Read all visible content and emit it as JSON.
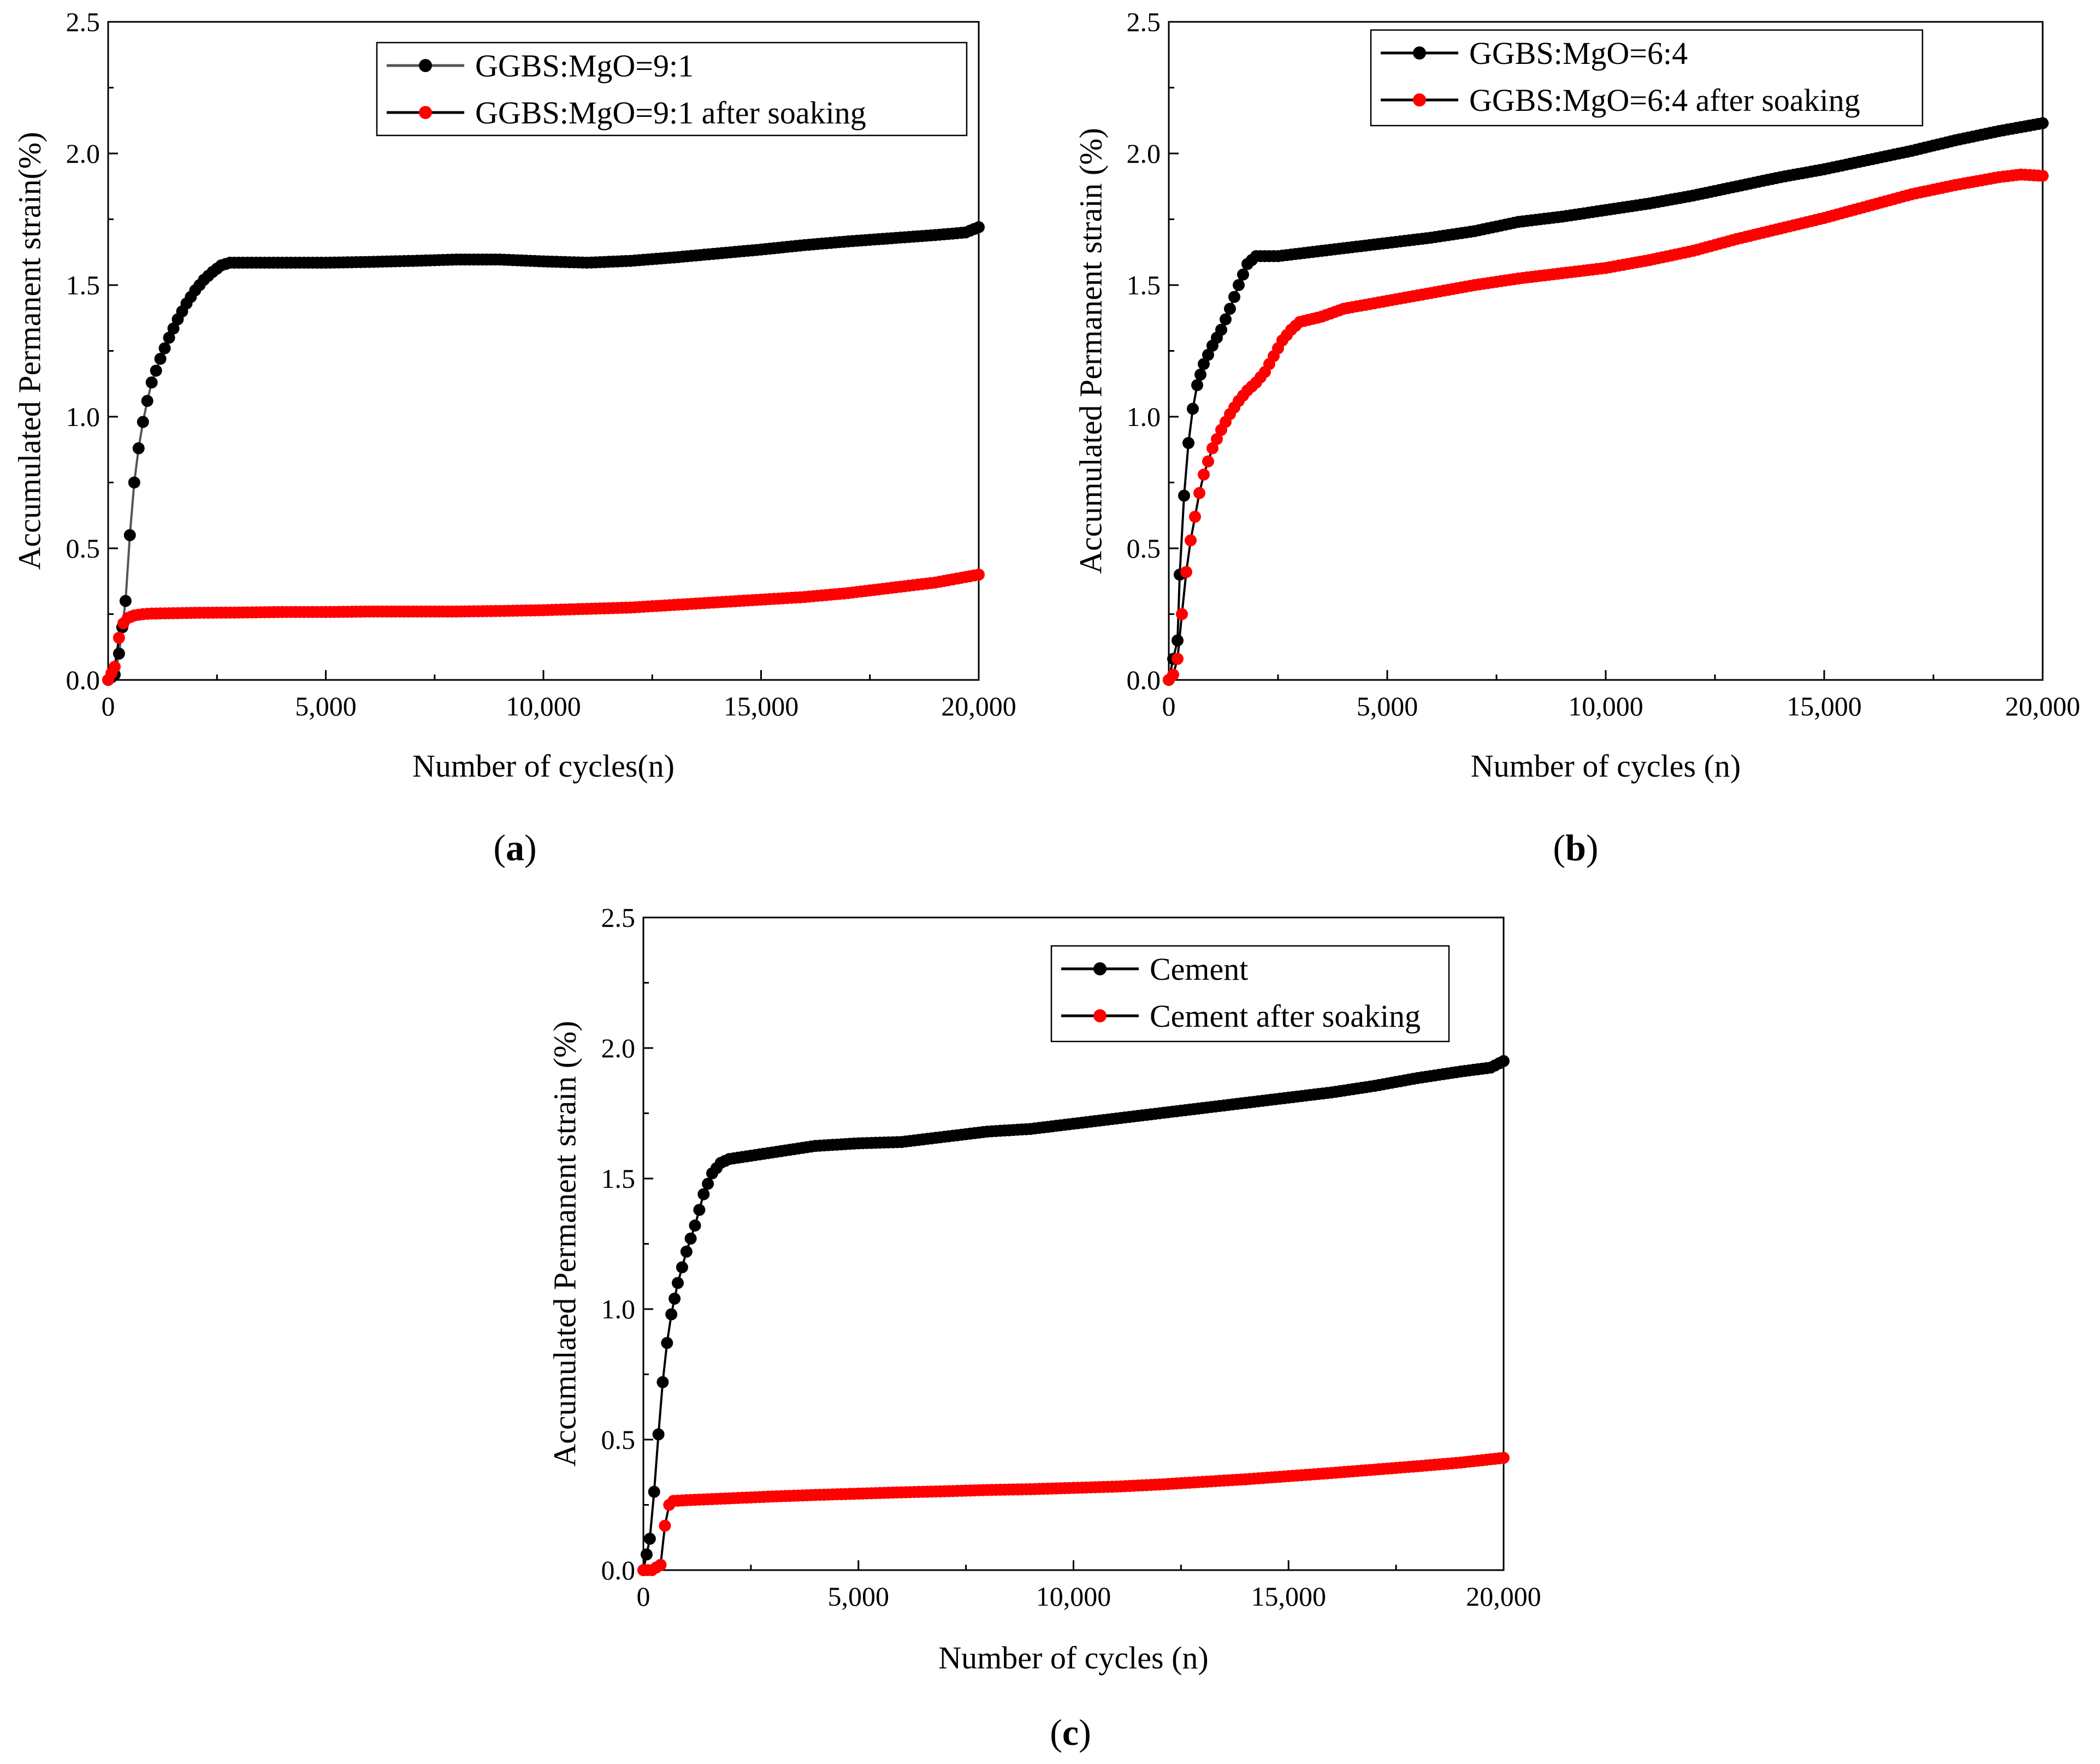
{
  "figure": {
    "panel_labels": [
      {
        "open": "(",
        "letter": "a",
        "close": ")"
      },
      {
        "open": "(",
        "letter": "b",
        "close": ")"
      },
      {
        "open": "(",
        "letter": "c",
        "close": ")"
      }
    ]
  },
  "chart_data": [
    {
      "type": "line",
      "title": "",
      "xlabel": "Number of cycles(n)",
      "ylabel": "Accumulated Permanent strain(%)",
      "xlim": [
        0,
        20000
      ],
      "ylim": [
        0,
        2.5
      ],
      "xticks": [
        0,
        5000,
        10000,
        15000,
        20000
      ],
      "xtick_labels": [
        "0",
        "5,000",
        "10,000",
        "15,000",
        "20,000"
      ],
      "yticks": [
        0,
        0.5,
        1.0,
        1.5,
        2.0,
        2.5
      ],
      "ytick_labels": [
        "0.0",
        "0.5",
        "1.0",
        "1.5",
        "2.0",
        "2.5"
      ],
      "legend_position": "top-right",
      "series": [
        {
          "name": "GGBS:MgO=9:1",
          "color": "#000000",
          "line_color": "#555555",
          "points": [
            [
              0,
              0
            ],
            [
              150,
              0.02
            ],
            [
              250,
              0.1
            ],
            [
              400,
              0.3
            ],
            [
              500,
              0.55
            ],
            [
              600,
              0.75
            ],
            [
              700,
              0.88
            ],
            [
              800,
              0.98
            ],
            [
              900,
              1.06
            ],
            [
              1000,
              1.13
            ],
            [
              1200,
              1.22
            ],
            [
              1400,
              1.3
            ],
            [
              1600,
              1.37
            ],
            [
              1800,
              1.43
            ],
            [
              2000,
              1.48
            ],
            [
              2200,
              1.52
            ],
            [
              2400,
              1.55
            ],
            [
              2600,
              1.575
            ],
            [
              2800,
              1.585
            ],
            [
              3000,
              1.585
            ],
            [
              4000,
              1.585
            ],
            [
              5000,
              1.585
            ],
            [
              6000,
              1.588
            ],
            [
              7000,
              1.592
            ],
            [
              8000,
              1.597
            ],
            [
              9000,
              1.597
            ],
            [
              10000,
              1.59
            ],
            [
              11000,
              1.585
            ],
            [
              12000,
              1.592
            ],
            [
              13000,
              1.605
            ],
            [
              14000,
              1.62
            ],
            [
              15000,
              1.635
            ],
            [
              16000,
              1.652
            ],
            [
              17000,
              1.666
            ],
            [
              18000,
              1.678
            ],
            [
              19000,
              1.69
            ],
            [
              19700,
              1.7
            ],
            [
              20000,
              1.72
            ]
          ]
        },
        {
          "name": "GGBS:MgO=9:1 after soaking",
          "color": "#ff0000",
          "line_color": "#000000",
          "points": [
            [
              0,
              0
            ],
            [
              150,
              0.05
            ],
            [
              250,
              0.16
            ],
            [
              350,
              0.215
            ],
            [
              450,
              0.235
            ],
            [
              600,
              0.245
            ],
            [
              800,
              0.25
            ],
            [
              1000,
              0.252
            ],
            [
              2000,
              0.255
            ],
            [
              3000,
              0.256
            ],
            [
              4000,
              0.258
            ],
            [
              5000,
              0.258
            ],
            [
              6000,
              0.26
            ],
            [
              7000,
              0.26
            ],
            [
              8000,
              0.26
            ],
            [
              9000,
              0.262
            ],
            [
              10000,
              0.265
            ],
            [
              11000,
              0.27
            ],
            [
              12000,
              0.275
            ],
            [
              13000,
              0.285
            ],
            [
              14000,
              0.295
            ],
            [
              15000,
              0.305
            ],
            [
              16000,
              0.315
            ],
            [
              17000,
              0.33
            ],
            [
              18000,
              0.35
            ],
            [
              19000,
              0.37
            ],
            [
              19500,
              0.385
            ],
            [
              20000,
              0.4
            ]
          ]
        }
      ]
    },
    {
      "type": "line",
      "title": "",
      "xlabel": "Number of cycles (n)",
      "ylabel": "Accumulated Permanent strain (%)",
      "xlim": [
        0,
        20000
      ],
      "ylim": [
        0,
        2.5
      ],
      "xticks": [
        0,
        5000,
        10000,
        15000,
        20000
      ],
      "xtick_labels": [
        "0",
        "5,000",
        "10,000",
        "15,000",
        "20,000"
      ],
      "yticks": [
        0,
        0.5,
        1.0,
        1.5,
        2.0,
        2.5
      ],
      "ytick_labels": [
        "0.0",
        "0.5",
        "1.0",
        "1.5",
        "2.0",
        "2.5"
      ],
      "legend_position": "top-right",
      "series": [
        {
          "name": "GGBS:MgO=6:4",
          "color": "#000000",
          "line_color": "#000000",
          "points": [
            [
              0,
              0
            ],
            [
              100,
              0.08
            ],
            [
              200,
              0.15
            ],
            [
              250,
              0.4
            ],
            [
              350,
              0.7
            ],
            [
              450,
              0.9
            ],
            [
              550,
              1.03
            ],
            [
              650,
              1.12
            ],
            [
              800,
              1.2
            ],
            [
              1000,
              1.27
            ],
            [
              1200,
              1.33
            ],
            [
              1400,
              1.41
            ],
            [
              1600,
              1.5
            ],
            [
              1800,
              1.58
            ],
            [
              2000,
              1.61
            ],
            [
              2500,
              1.61
            ],
            [
              3000,
              1.62
            ],
            [
              4000,
              1.64
            ],
            [
              5000,
              1.66
            ],
            [
              6000,
              1.68
            ],
            [
              7000,
              1.705
            ],
            [
              8000,
              1.74
            ],
            [
              9000,
              1.76
            ],
            [
              10000,
              1.785
            ],
            [
              11000,
              1.81
            ],
            [
              12000,
              1.84
            ],
            [
              13000,
              1.875
            ],
            [
              14000,
              1.91
            ],
            [
              15000,
              1.94
            ],
            [
              16000,
              1.975
            ],
            [
              17000,
              2.01
            ],
            [
              18000,
              2.05
            ],
            [
              19000,
              2.085
            ],
            [
              20000,
              2.115
            ]
          ]
        },
        {
          "name": "GGBS:MgO=6:4 after soaking",
          "color": "#ff0000",
          "line_color": "#000000",
          "points": [
            [
              0,
              0
            ],
            [
              100,
              0.02
            ],
            [
              200,
              0.08
            ],
            [
              300,
              0.25
            ],
            [
              400,
              0.41
            ],
            [
              500,
              0.53
            ],
            [
              600,
              0.62
            ],
            [
              700,
              0.71
            ],
            [
              800,
              0.78
            ],
            [
              1000,
              0.88
            ],
            [
              1200,
              0.95
            ],
            [
              1400,
              1.01
            ],
            [
              1600,
              1.06
            ],
            [
              1800,
              1.1
            ],
            [
              2000,
              1.13
            ],
            [
              2200,
              1.17
            ],
            [
              2400,
              1.23
            ],
            [
              2600,
              1.29
            ],
            [
              2800,
              1.33
            ],
            [
              3000,
              1.36
            ],
            [
              3500,
              1.38
            ],
            [
              4000,
              1.41
            ],
            [
              5000,
              1.44
            ],
            [
              6000,
              1.47
            ],
            [
              7000,
              1.5
            ],
            [
              8000,
              1.525
            ],
            [
              9000,
              1.545
            ],
            [
              10000,
              1.565
            ],
            [
              11000,
              1.595
            ],
            [
              12000,
              1.63
            ],
            [
              13000,
              1.675
            ],
            [
              14000,
              1.715
            ],
            [
              15000,
              1.755
            ],
            [
              16000,
              1.8
            ],
            [
              17000,
              1.845
            ],
            [
              18000,
              1.88
            ],
            [
              19000,
              1.91
            ],
            [
              19500,
              1.92
            ],
            [
              20000,
              1.915
            ]
          ]
        }
      ]
    },
    {
      "type": "line",
      "title": "",
      "xlabel": "Number of cycles (n)",
      "ylabel": "Accumulated Permanent strain (%)",
      "xlim": [
        0,
        20000
      ],
      "ylim": [
        0,
        2.5
      ],
      "xticks": [
        0,
        5000,
        10000,
        15000,
        20000
      ],
      "xtick_labels": [
        "0",
        "5,000",
        "10,000",
        "15,000",
        "20,000"
      ],
      "yticks": [
        0,
        0.5,
        1.0,
        1.5,
        2.0,
        2.5
      ],
      "ytick_labels": [
        "0.0",
        "0.5",
        "1.0",
        "1.5",
        "2.0",
        "2.5"
      ],
      "legend_position": "top-right",
      "series": [
        {
          "name": "Cement",
          "color": "#000000",
          "line_color": "#000000",
          "points": [
            [
              0,
              0
            ],
            [
              150,
              0.12
            ],
            [
              250,
              0.3
            ],
            [
              350,
              0.52
            ],
            [
              450,
              0.72
            ],
            [
              550,
              0.87
            ],
            [
              650,
              0.98
            ],
            [
              800,
              1.1
            ],
            [
              900,
              1.16
            ],
            [
              1000,
              1.22
            ],
            [
              1200,
              1.32
            ],
            [
              1400,
              1.44
            ],
            [
              1600,
              1.52
            ],
            [
              1800,
              1.56
            ],
            [
              2000,
              1.575
            ],
            [
              3000,
              1.6
            ],
            [
              4000,
              1.625
            ],
            [
              5000,
              1.635
            ],
            [
              6000,
              1.64
            ],
            [
              7000,
              1.66
            ],
            [
              8000,
              1.68
            ],
            [
              9000,
              1.69
            ],
            [
              10000,
              1.71
            ],
            [
              11000,
              1.73
            ],
            [
              12000,
              1.75
            ],
            [
              13000,
              1.77
            ],
            [
              14000,
              1.79
            ],
            [
              15000,
              1.81
            ],
            [
              16000,
              1.83
            ],
            [
              17000,
              1.855
            ],
            [
              18000,
              1.885
            ],
            [
              19000,
              1.91
            ],
            [
              19700,
              1.925
            ],
            [
              20000,
              1.95
            ]
          ]
        },
        {
          "name": "Cement after soaking",
          "color": "#ff0000",
          "line_color": "#000000",
          "points": [
            [
              0,
              0
            ],
            [
              200,
              0.0
            ],
            [
              400,
              0.02
            ],
            [
              500,
              0.17
            ],
            [
              600,
              0.25
            ],
            [
              700,
              0.265
            ],
            [
              1000,
              0.268
            ],
            [
              2000,
              0.275
            ],
            [
              3000,
              0.282
            ],
            [
              4000,
              0.288
            ],
            [
              5000,
              0.293
            ],
            [
              6000,
              0.298
            ],
            [
              7000,
              0.302
            ],
            [
              8000,
              0.307
            ],
            [
              9000,
              0.31
            ],
            [
              10000,
              0.315
            ],
            [
              11000,
              0.32
            ],
            [
              12000,
              0.328
            ],
            [
              13000,
              0.338
            ],
            [
              14000,
              0.348
            ],
            [
              15000,
              0.36
            ],
            [
              16000,
              0.372
            ],
            [
              17000,
              0.385
            ],
            [
              18000,
              0.398
            ],
            [
              19000,
              0.412
            ],
            [
              20000,
              0.43
            ]
          ]
        }
      ]
    }
  ]
}
